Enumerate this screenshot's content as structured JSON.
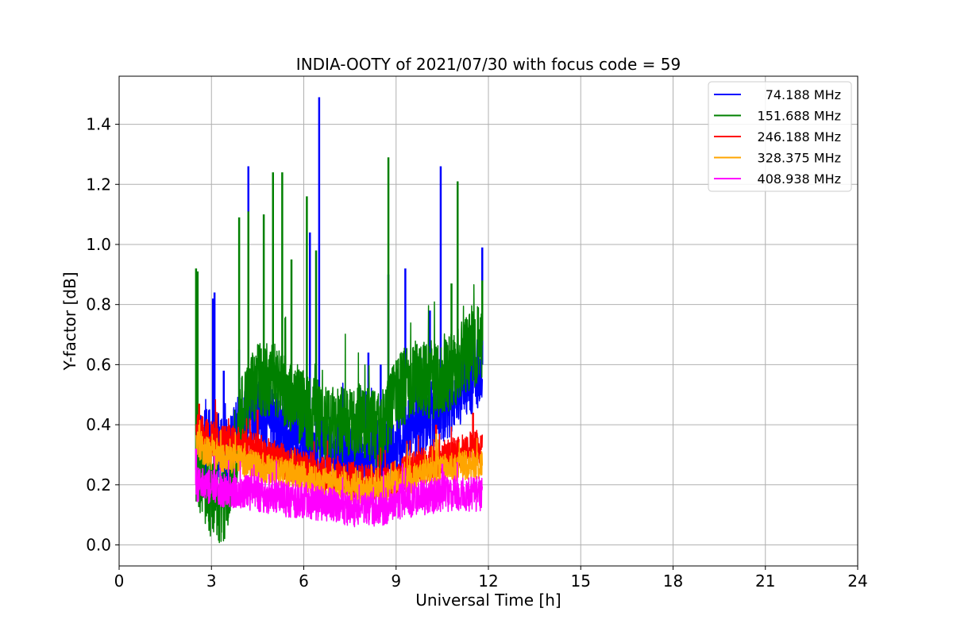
{
  "chart_data": {
    "type": "line",
    "title": "INDIA-OOTY of 2021/07/30 with focus code = 59",
    "xlabel": "Universal Time [h]",
    "ylabel": "Y-factor [dB]",
    "xlim": [
      0,
      24
    ],
    "ylim": [
      -0.07,
      1.56
    ],
    "xticks": [
      0,
      3,
      6,
      9,
      12,
      15,
      18,
      21,
      24
    ],
    "xtick_labels": [
      "0",
      "3",
      "6",
      "9",
      "12",
      "15",
      "18",
      "21",
      "24"
    ],
    "yticks": [
      0.0,
      0.2,
      0.4,
      0.6,
      0.8,
      1.0,
      1.2,
      1.4
    ],
    "ytick_labels": [
      "0.0",
      "0.2",
      "0.4",
      "0.6",
      "0.8",
      "1.0",
      "1.2",
      "1.4"
    ],
    "grid": true,
    "legend_position": "top-right",
    "series": [
      {
        "name": "74.188 MHz",
        "color": "#0000ff",
        "x": [
          2.5,
          3.0,
          3.5,
          4.0,
          4.5,
          5.0,
          5.5,
          6.0,
          6.5,
          7.0,
          7.5,
          8.0,
          8.5,
          9.0,
          9.5,
          10.0,
          10.5,
          11.0,
          11.5,
          11.8
        ],
        "y": [
          0.3,
          0.35,
          0.3,
          0.4,
          0.45,
          0.4,
          0.38,
          0.35,
          0.32,
          0.3,
          0.28,
          0.3,
          0.3,
          0.32,
          0.4,
          0.42,
          0.45,
          0.5,
          0.55,
          0.6
        ],
        "spread": 0.12,
        "spikes": [
          [
            3.05,
            0.82
          ],
          [
            3.1,
            0.84
          ],
          [
            3.4,
            0.58
          ],
          [
            3.9,
            0.65
          ],
          [
            4.2,
            1.26
          ],
          [
            6.2,
            1.04
          ],
          [
            6.5,
            1.49
          ],
          [
            8.1,
            0.64
          ],
          [
            8.5,
            0.6
          ],
          [
            8.75,
            0.9
          ],
          [
            9.3,
            0.92
          ],
          [
            10.1,
            0.78
          ],
          [
            10.45,
            1.26
          ],
          [
            11.8,
            0.99
          ]
        ]
      },
      {
        "name": "151.688 MHz",
        "color": "#008000",
        "x": [
          2.5,
          3.0,
          3.5,
          4.0,
          4.5,
          5.0,
          5.5,
          6.0,
          6.5,
          7.0,
          7.5,
          8.0,
          8.5,
          9.0,
          9.5,
          10.0,
          10.5,
          11.0,
          11.5,
          11.8
        ],
        "y": [
          0.25,
          0.15,
          0.12,
          0.45,
          0.55,
          0.55,
          0.5,
          0.45,
          0.42,
          0.4,
          0.4,
          0.42,
          0.38,
          0.5,
          0.55,
          0.55,
          0.55,
          0.6,
          0.65,
          0.68
        ],
        "spread": 0.13,
        "spikes": [
          [
            2.5,
            0.92
          ],
          [
            2.55,
            0.91
          ],
          [
            3.9,
            1.09
          ],
          [
            4.2,
            1.11
          ],
          [
            4.7,
            1.1
          ],
          [
            5.0,
            1.24
          ],
          [
            5.3,
            1.24
          ],
          [
            5.6,
            0.95
          ],
          [
            6.1,
            1.16
          ],
          [
            6.4,
            0.98
          ],
          [
            8.75,
            1.29
          ],
          [
            10.8,
            0.87
          ],
          [
            11.0,
            1.21
          ],
          [
            11.8,
            0.88
          ]
        ]
      },
      {
        "name": "246.188 MHz",
        "color": "#ff0000",
        "x": [
          2.5,
          3.0,
          3.5,
          4.0,
          4.5,
          5.0,
          5.5,
          6.0,
          6.5,
          7.0,
          7.5,
          8.0,
          8.5,
          9.0,
          9.5,
          10.0,
          10.5,
          11.0,
          11.5,
          11.8
        ],
        "y": [
          0.38,
          0.35,
          0.34,
          0.33,
          0.31,
          0.29,
          0.27,
          0.26,
          0.24,
          0.23,
          0.22,
          0.21,
          0.2,
          0.22,
          0.25,
          0.27,
          0.29,
          0.3,
          0.32,
          0.33
        ],
        "spread": 0.06,
        "spikes": [
          [
            2.6,
            0.47
          ],
          [
            4.5,
            0.45
          ],
          [
            10.3,
            0.4
          ],
          [
            11.5,
            0.44
          ]
        ]
      },
      {
        "name": "328.375 MHz",
        "color": "#ffa500",
        "x": [
          2.5,
          3.0,
          3.5,
          4.0,
          4.5,
          5.0,
          5.5,
          6.0,
          6.5,
          7.0,
          7.5,
          8.0,
          8.5,
          9.0,
          9.5,
          10.0,
          10.5,
          11.0,
          11.5,
          11.8
        ],
        "y": [
          0.33,
          0.3,
          0.29,
          0.28,
          0.26,
          0.25,
          0.24,
          0.23,
          0.21,
          0.2,
          0.19,
          0.18,
          0.18,
          0.2,
          0.22,
          0.24,
          0.25,
          0.26,
          0.27,
          0.27
        ],
        "spread": 0.05,
        "spikes": [
          [
            2.6,
            0.4
          ],
          [
            10.3,
            0.37
          ]
        ]
      },
      {
        "name": "408.938 MHz",
        "color": "#ff00ff",
        "x": [
          2.5,
          3.0,
          3.5,
          4.0,
          4.5,
          5.0,
          5.5,
          6.0,
          6.5,
          7.0,
          7.5,
          8.0,
          8.5,
          9.0,
          9.5,
          10.0,
          10.5,
          11.0,
          11.5,
          11.8
        ],
        "y": [
          0.2,
          0.19,
          0.18,
          0.18,
          0.17,
          0.16,
          0.15,
          0.15,
          0.14,
          0.13,
          0.12,
          0.12,
          0.12,
          0.14,
          0.15,
          0.16,
          0.17,
          0.17,
          0.17,
          0.17
        ],
        "spread": 0.06,
        "spikes": [
          [
            2.5,
            0.32
          ],
          [
            10.5,
            0.27
          ]
        ]
      }
    ]
  }
}
